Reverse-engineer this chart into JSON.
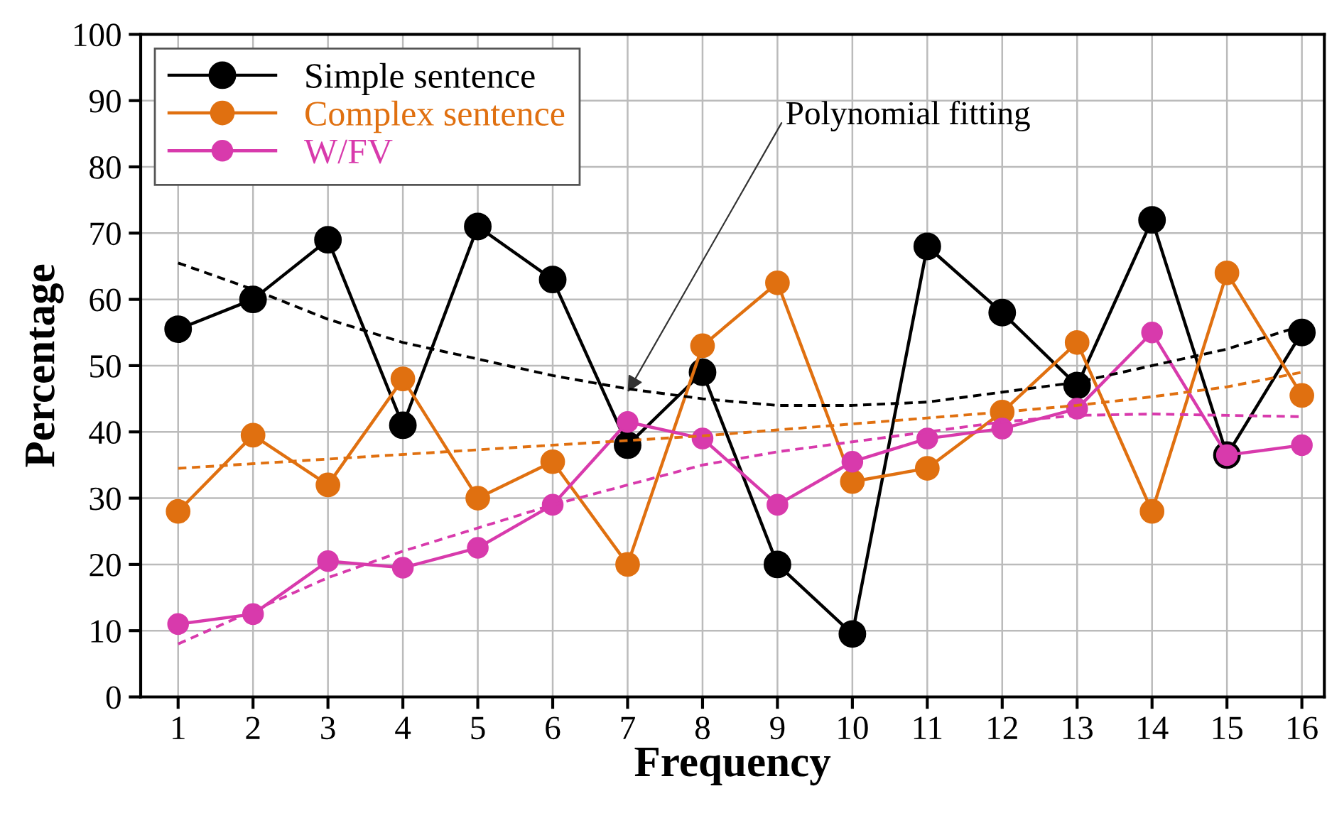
{
  "chart_data": {
    "type": "line",
    "xlabel": "Frequency",
    "ylabel": "Percentage",
    "x": [
      1,
      2,
      3,
      4,
      5,
      6,
      7,
      8,
      9,
      10,
      11,
      12,
      13,
      14,
      15,
      16
    ],
    "series": [
      {
        "name": "Simple sentence",
        "color": "#000000",
        "values": [
          55.5,
          60,
          69,
          41,
          71,
          63,
          38,
          49,
          20,
          9.5,
          68,
          58,
          47,
          72,
          36.5,
          55
        ]
      },
      {
        "name": "Complex sentence",
        "color": "#e07010",
        "values": [
          28,
          39.5,
          32,
          48,
          30,
          35.5,
          20,
          53,
          62.5,
          32.5,
          34.5,
          43,
          53.5,
          28,
          64,
          45.5
        ]
      },
      {
        "name": "W/FV",
        "color": "#d83aac",
        "values": [
          11,
          12.5,
          20.5,
          19.5,
          22.5,
          29,
          41.5,
          39,
          29,
          35.5,
          39,
          40.5,
          43.5,
          55,
          36.5,
          38
        ]
      },
      {
        "type": "line",
        "color": "#000000",
        "marker": "none",
        "line_style": "dashed",
        "values": [
          65.5,
          61.5,
          57,
          53.5,
          51,
          48.5,
          46.5,
          45,
          44,
          44,
          44.5,
          46,
          47.5,
          50,
          52.5,
          56
        ]
      },
      {
        "type": "line",
        "color": "#e07010",
        "marker": "none",
        "line_style": "dashed",
        "values": [
          34.5,
          35.2,
          35.9,
          36.6,
          37.3,
          38,
          38.7,
          39.4,
          40.3,
          41.2,
          42.1,
          43,
          44,
          45.3,
          46.8,
          49
        ]
      },
      {
        "type": "line",
        "color": "#d83aac",
        "marker": "none",
        "line_style": "dashed",
        "values": [
          8,
          13,
          18,
          22,
          25.5,
          29,
          32,
          35,
          37,
          38.5,
          40,
          41.5,
          42.5,
          42.7,
          42.5,
          42.3
        ]
      }
    ],
    "annotations": [
      {
        "text": "Polynomial fitting",
        "x": 7,
        "y": 46
      }
    ],
    "xlim": [
      0.5,
      16.3
    ],
    "xticks": [
      1,
      2,
      3,
      4,
      5,
      6,
      7,
      8,
      9,
      10,
      11,
      12,
      13,
      14,
      15,
      16
    ],
    "ylim": [
      0,
      100
    ],
    "yticks": [
      0,
      10,
      20,
      30,
      40,
      50,
      60,
      70,
      80,
      90,
      100
    ],
    "grid": true,
    "legend": "top left",
    "marker": "circle",
    "line_style": "solid"
  }
}
